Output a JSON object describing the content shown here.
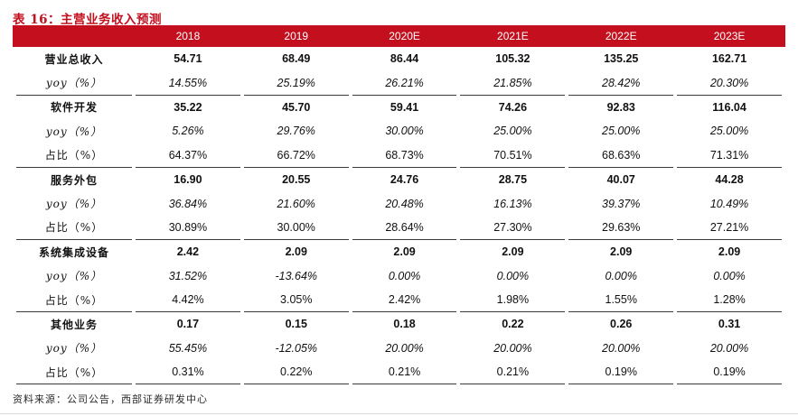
{
  "title": "表 16：主营业务收入预测",
  "source_note": "资料来源：公司公告，西部证券研发中心",
  "colors": {
    "accent_red": "#c4101e",
    "separator_line": "#3c3c3c",
    "bottom_hairline": "#d9d9d9",
    "header_text": "#ffffff",
    "body_text": "#111111"
  },
  "table": {
    "columns": [
      "",
      "2018",
      "2019",
      "2020E",
      "2021E",
      "2022E",
      "2023E"
    ],
    "sections": [
      {
        "rows": [
          {
            "label": "营业总收入",
            "style": "bold",
            "values": [
              "54.71",
              "68.49",
              "86.44",
              "105.32",
              "135.25",
              "162.71"
            ]
          },
          {
            "label": "yoy（%）",
            "style": "italic",
            "values": [
              "14.55%",
              "25.19%",
              "26.21%",
              "21.85%",
              "28.42%",
              "20.30%"
            ]
          }
        ]
      },
      {
        "rows": [
          {
            "label": "软件开发",
            "style": "bold",
            "values": [
              "35.22",
              "45.70",
              "59.41",
              "74.26",
              "92.83",
              "116.04"
            ]
          },
          {
            "label": "yoy（%）",
            "style": "italic",
            "values": [
              "5.26%",
              "29.76%",
              "30.00%",
              "25.00%",
              "25.00%",
              "25.00%"
            ]
          },
          {
            "label": "占比（%）",
            "style": "regular",
            "values": [
              "64.37%",
              "66.72%",
              "68.73%",
              "70.51%",
              "68.63%",
              "71.31%"
            ]
          }
        ]
      },
      {
        "rows": [
          {
            "label": "服务外包",
            "style": "bold",
            "values": [
              "16.90",
              "20.55",
              "24.76",
              "28.75",
              "40.07",
              "44.28"
            ]
          },
          {
            "label": "yoy（%）",
            "style": "italic",
            "values": [
              "36.84%",
              "21.60%",
              "20.48%",
              "16.13%",
              "39.37%",
              "10.49%"
            ]
          },
          {
            "label": "占比（%）",
            "style": "regular",
            "values": [
              "30.89%",
              "30.00%",
              "28.64%",
              "27.30%",
              "29.63%",
              "27.21%"
            ]
          }
        ]
      },
      {
        "rows": [
          {
            "label": "系统集成设备",
            "style": "bold",
            "values": [
              "2.42",
              "2.09",
              "2.09",
              "2.09",
              "2.09",
              "2.09"
            ]
          },
          {
            "label": "yoy（%）",
            "style": "italic",
            "values": [
              "31.52%",
              "-13.64%",
              "0.00%",
              "0.00%",
              "0.00%",
              "0.00%"
            ]
          },
          {
            "label": "占比（%）",
            "style": "regular",
            "values": [
              "4.42%",
              "3.05%",
              "2.42%",
              "1.98%",
              "1.55%",
              "1.28%"
            ]
          }
        ]
      },
      {
        "rows": [
          {
            "label": "其他业务",
            "style": "bold",
            "values": [
              "0.17",
              "0.15",
              "0.18",
              "0.22",
              "0.26",
              "0.31"
            ]
          },
          {
            "label": "yoy（%）",
            "style": "italic",
            "values": [
              "55.45%",
              "-12.05%",
              "20.00%",
              "20.00%",
              "20.00%",
              "20.00%"
            ]
          },
          {
            "label": "占比（%）",
            "style": "regular",
            "values": [
              "0.31%",
              "0.22%",
              "0.21%",
              "0.21%",
              "0.19%",
              "0.19%"
            ]
          }
        ]
      }
    ]
  }
}
